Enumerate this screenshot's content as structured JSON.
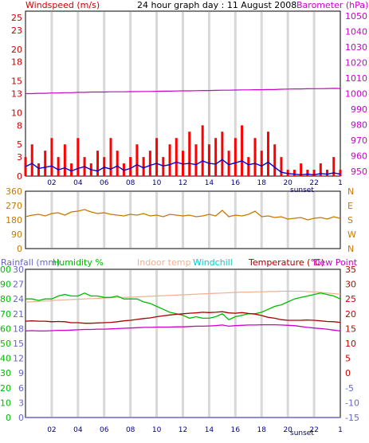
{
  "header": {
    "left_label": "Windspeed (m/s)",
    "title": "24 hour graph day : 11 August 2008",
    "right_label": "Barometer (hPa)"
  },
  "x_ticks": [
    "02",
    "04",
    "06",
    "08",
    "10",
    "12",
    "14",
    "16",
    "18",
    "20",
    "22",
    "1"
  ],
  "sunset_label": "sunset",
  "bottom_header": {
    "rainfall": "Rainfall (mm)",
    "humidity": "Humidity %",
    "indoor": "Indoor temp",
    "windchill": "Windchill",
    "temperature": "Temperature (°C)",
    "dewpoint": "Dew Point"
  },
  "colors": {
    "wind_gust": "#ff0000",
    "wind_avg": "#0000cc",
    "barometer": "#cc00cc",
    "direction": "#c87800",
    "humidity": "#00bb00",
    "rainfall": "#6666cc",
    "indoor": "#f0b090",
    "windchill": "#00cccc",
    "temperature": "#aa0000",
    "dewpoint": "#cc00cc",
    "right_axis": "#cc0000"
  },
  "chart_data": [
    {
      "type": "bar",
      "title": "24 hour graph day : 11 August 2008",
      "ylabel": "Windspeed (m/s)",
      "y2label": "Barometer (hPa)",
      "ylim": [
        0,
        26
      ],
      "y_ticks": [
        0,
        3,
        5,
        8,
        10,
        13,
        15,
        18,
        20,
        23,
        25
      ],
      "y2lim": [
        947,
        1053
      ],
      "y2_ticks": [
        950,
        960,
        970,
        980,
        990,
        1000,
        1010,
        1020,
        1030,
        1040,
        1050
      ],
      "hours": [
        0,
        0.5,
        1,
        1.5,
        2,
        2.5,
        3,
        3.5,
        4,
        4.5,
        5,
        5.5,
        6,
        6.5,
        7,
        7.5,
        8,
        8.5,
        9,
        9.5,
        10,
        10.5,
        11,
        11.5,
        12,
        12.5,
        13,
        13.5,
        14,
        14.5,
        15,
        15.5,
        16,
        16.5,
        17,
        17.5,
        18,
        18.5,
        19,
        19.5,
        20,
        20.5,
        21,
        21.5,
        22,
        22.5,
        23,
        23.5,
        24
      ],
      "series": [
        {
          "name": "Windspeed gust",
          "values": [
            3,
            5,
            2,
            4,
            6,
            3,
            5,
            2,
            6,
            3,
            2,
            4,
            3,
            6,
            4,
            2,
            3,
            5,
            3,
            4,
            6,
            3,
            5,
            6,
            4,
            7,
            5,
            8,
            5,
            6,
            7,
            4,
            6,
            8,
            3,
            6,
            4,
            7,
            5,
            3,
            1,
            1,
            2,
            1,
            1,
            2,
            1,
            3,
            1
          ]
        },
        {
          "name": "Windspeed average",
          "values": [
            1.5,
            2,
            1.2,
            1.4,
            1.6,
            1,
            1.3,
            0.8,
            1.2,
            1.5,
            1,
            0.8,
            1.4,
            1.1,
            1.6,
            0.9,
            1.2,
            1.8,
            1.3,
            1.7,
            2,
            1.6,
            1.8,
            2.2,
            1.9,
            2,
            1.8,
            2.4,
            2,
            1.9,
            2.6,
            1.8,
            2.1,
            2.4,
            1.8,
            2,
            1.6,
            2.2,
            1.4,
            0.6,
            0.4,
            0.3,
            0.2,
            0.3,
            0.2,
            0.4,
            0.3,
            0.5,
            0.3
          ]
        },
        {
          "name": "Barometer",
          "axis": "right",
          "values": [
            1000,
            1000,
            1000.2,
            1000.2,
            1000.4,
            1000.4,
            1000.6,
            1000.6,
            1000.8,
            1000.8,
            1001,
            1001,
            1001,
            1001.2,
            1001.2,
            1001.2,
            1001.3,
            1001.3,
            1001.4,
            1001.4,
            1001.5,
            1001.6,
            1001.6,
            1001.7,
            1001.8,
            1001.8,
            1001.9,
            1002,
            1002,
            1002.1,
            1002.2,
            1002.2,
            1002.3,
            1002.4,
            1002.4,
            1002.5,
            1002.5,
            1002.6,
            1002.6,
            1002.8,
            1002.9,
            1003,
            1003,
            1003.1,
            1003.2,
            1003.2,
            1003.3,
            1003.4,
            1003.3
          ]
        }
      ]
    },
    {
      "type": "line",
      "y_ticks": [
        0,
        90,
        180,
        270,
        360
      ],
      "y2_ticks": [
        "N",
        "W",
        "S",
        "E",
        "N"
      ],
      "ylim": [
        0,
        360
      ],
      "hours": [
        0,
        0.5,
        1,
        1.5,
        2,
        2.5,
        3,
        3.5,
        4,
        4.5,
        5,
        5.5,
        6,
        6.5,
        7,
        7.5,
        8,
        8.5,
        9,
        9.5,
        10,
        10.5,
        11,
        11.5,
        12,
        12.5,
        13,
        13.5,
        14,
        14.5,
        15,
        15.5,
        16,
        16.5,
        17,
        17.5,
        18,
        18.5,
        19,
        19.5,
        20,
        20.5,
        21,
        21.5,
        22,
        22.5,
        23,
        23.5,
        24
      ],
      "series": [
        {
          "name": "Wind direction",
          "values": [
            200,
            210,
            215,
            205,
            220,
            225,
            210,
            230,
            235,
            245,
            230,
            220,
            225,
            215,
            210,
            205,
            215,
            210,
            220,
            205,
            210,
            200,
            215,
            210,
            205,
            210,
            200,
            205,
            215,
            205,
            240,
            200,
            210,
            205,
            215,
            235,
            200,
            205,
            195,
            200,
            185,
            190,
            195,
            180,
            190,
            195,
            185,
            200,
            190
          ]
        }
      ]
    },
    {
      "type": "line",
      "rain_ticks": [
        0,
        3,
        6,
        9,
        12,
        15,
        18,
        21,
        24,
        27,
        30
      ],
      "humidity_ticks": [
        0,
        10,
        20,
        30,
        40,
        50,
        60,
        70,
        80,
        90,
        100
      ],
      "temp_ticks": [
        -15,
        -10,
        -5,
        0,
        5,
        10,
        15,
        20,
        25,
        30,
        35
      ],
      "ylim": [
        -15,
        35
      ],
      "hours": [
        0,
        0.5,
        1,
        1.5,
        2,
        2.5,
        3,
        3.5,
        4,
        4.5,
        5,
        5.5,
        6,
        6.5,
        7,
        7.5,
        8,
        8.5,
        9,
        9.5,
        10,
        10.5,
        11,
        11.5,
        12,
        12.5,
        13,
        13.5,
        14,
        14.5,
        15,
        15.5,
        16,
        16.5,
        17,
        17.5,
        18,
        18.5,
        19,
        19.5,
        20,
        20.5,
        21,
        21.5,
        22,
        22.5,
        23,
        23.5,
        24
      ],
      "series": [
        {
          "name": "Humidity %",
          "axis": "humidity",
          "values": [
            80,
            80,
            79,
            80,
            80,
            82,
            83,
            82,
            82,
            84,
            82,
            82,
            81,
            81,
            82,
            80,
            80,
            80,
            78,
            77,
            75,
            73,
            71,
            70,
            69,
            67,
            68,
            67,
            67,
            68,
            70,
            66,
            68,
            69,
            70,
            70,
            71,
            73,
            75,
            76,
            78,
            80,
            81,
            82,
            83,
            84,
            83,
            82,
            80
          ]
        },
        {
          "name": "Indoor temp",
          "axis": "temp",
          "values": [
            24,
            24,
            24.2,
            24.3,
            24.4,
            24.6,
            24.7,
            24.8,
            24.9,
            25,
            25.1,
            25.2,
            25.3,
            25.4,
            25.5,
            25.5,
            25.6,
            25.7,
            25.8,
            25.9,
            26,
            26.1,
            26.2,
            26.3,
            26.4,
            26.5,
            26.6,
            26.7,
            26.8,
            26.9,
            27,
            27.1,
            27.2,
            27.3,
            27.3,
            27.4,
            27.4,
            27.5,
            27.5,
            27.6,
            27.6,
            27.6,
            27.6,
            27.5,
            27.4,
            27.2,
            27,
            26.8,
            26.6
          ]
        },
        {
          "name": "Temperature (°C)",
          "axis": "temp",
          "values": [
            17.5,
            17.6,
            17.5,
            17.5,
            17.3,
            17.4,
            17.3,
            17,
            17,
            16.8,
            16.8,
            16.9,
            17,
            17.1,
            17.3,
            17.6,
            17.8,
            18.1,
            18.4,
            18.6,
            19,
            19.3,
            19.6,
            19.8,
            20,
            20.2,
            20.3,
            20.5,
            20.4,
            20.5,
            20.7,
            20.3,
            20.2,
            20.4,
            20.1,
            19.9,
            19.4,
            18.8,
            18.5,
            18,
            17.8,
            17.8,
            17.8,
            17.9,
            17.8,
            17.6,
            17.4,
            17.3,
            17.1
          ]
        },
        {
          "name": "Dew Point",
          "axis": "temp",
          "values": [
            14.2,
            14.3,
            14.2,
            14.2,
            14.3,
            14.4,
            14.4,
            14.5,
            14.6,
            14.7,
            14.7,
            14.8,
            14.8,
            14.9,
            15,
            15.1,
            15.2,
            15.3,
            15.4,
            15.4,
            15.5,
            15.5,
            15.5,
            15.6,
            15.6,
            15.7,
            15.8,
            15.8,
            15.9,
            16,
            16.2,
            15.8,
            16,
            16.1,
            16.2,
            16.2,
            16.3,
            16.3,
            16.3,
            16.2,
            16.1,
            16,
            15.7,
            15.4,
            15.2,
            15,
            14.8,
            14.5,
            14.2
          ]
        },
        {
          "name": "Rainfall (mm)",
          "axis": "rain",
          "values": [
            0,
            0,
            0,
            0,
            0,
            0,
            0,
            0,
            0,
            0,
            0,
            0,
            0,
            0,
            0,
            0,
            0,
            0,
            0,
            0,
            0,
            0,
            0,
            0,
            0,
            0,
            0,
            0,
            0,
            0,
            0,
            0,
            0,
            0,
            0,
            0,
            0,
            0,
            0,
            0,
            0,
            0,
            0,
            0,
            0,
            0,
            0,
            0,
            0
          ]
        }
      ]
    }
  ]
}
